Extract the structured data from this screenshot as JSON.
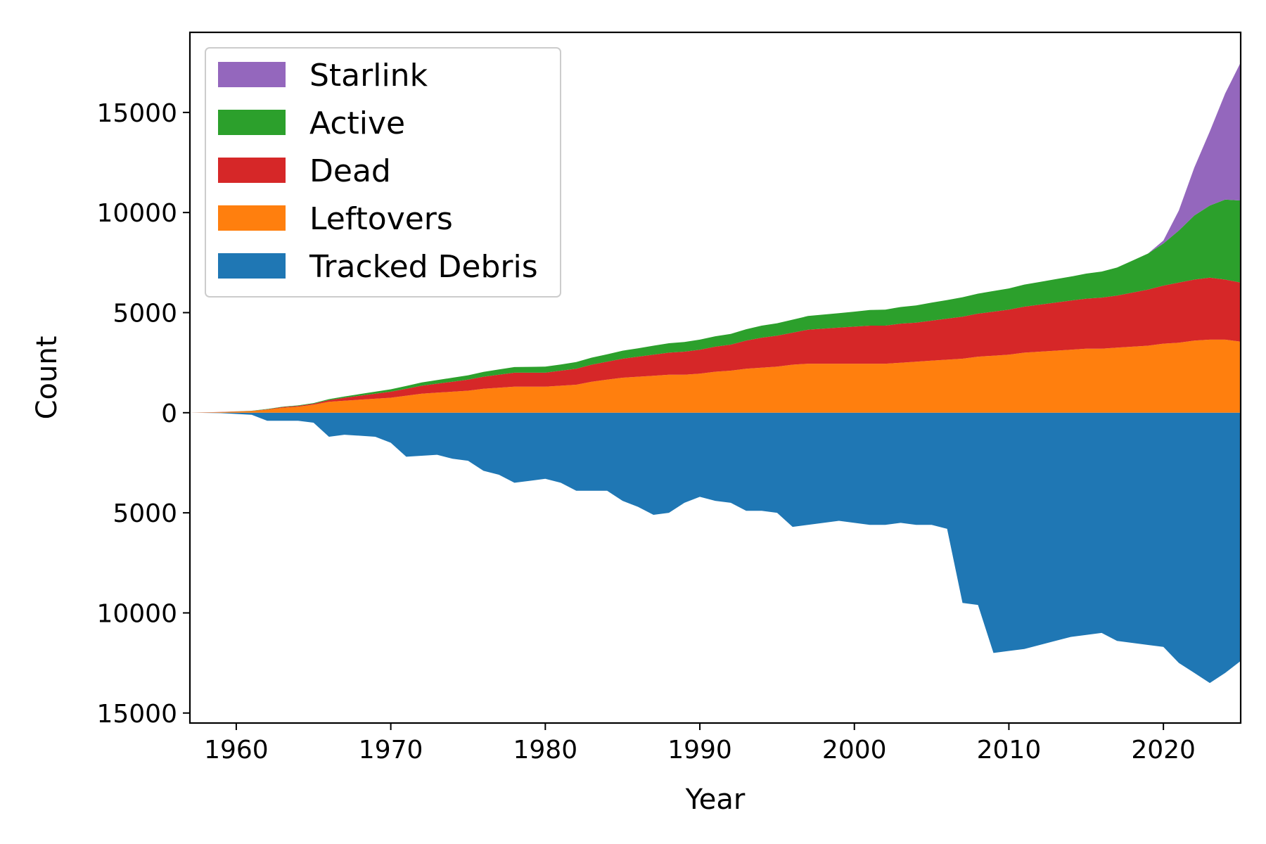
{
  "chart_data": {
    "type": "area",
    "title": "",
    "xlabel": "Year",
    "ylabel": "Count",
    "xlim": [
      1957,
      2025
    ],
    "ylim": [
      -15500,
      19000
    ],
    "xticks": [
      1960,
      1970,
      1980,
      1990,
      2000,
      2010,
      2020
    ],
    "xtick_labels": [
      "1960",
      "1970",
      "1980",
      "1990",
      "2000",
      "2010",
      "2020"
    ],
    "yticks": [
      -15000,
      -10000,
      -5000,
      0,
      5000,
      10000,
      15000
    ],
    "ytick_labels": [
      "15000",
      "10000",
      "5000",
      "0",
      "5000",
      "10000",
      "15000"
    ],
    "grid": false,
    "legend_position": "top-left",
    "legend_order": [
      "Starlink",
      "Active",
      "Dead",
      "Leftovers",
      "Tracked Debris"
    ],
    "x": [
      1957,
      1959,
      1961,
      1962,
      1963,
      1964,
      1965,
      1966,
      1967,
      1968,
      1969,
      1970,
      1971,
      1972,
      1973,
      1974,
      1975,
      1976,
      1977,
      1978,
      1979,
      1980,
      1981,
      1982,
      1983,
      1984,
      1985,
      1986,
      1987,
      1988,
      1989,
      1990,
      1991,
      1992,
      1993,
      1994,
      1995,
      1996,
      1997,
      1998,
      1999,
      2000,
      2001,
      2002,
      2003,
      2004,
      2005,
      2006,
      2007,
      2008,
      2009,
      2010,
      2011,
      2012,
      2013,
      2014,
      2015,
      2016,
      2017,
      2018,
      2019,
      2020,
      2021,
      2022,
      2023,
      2024,
      2025
    ],
    "series": [
      {
        "name": "Tracked Debris",
        "color": "#1f77b4",
        "direction": "below",
        "values": [
          0,
          20,
          100,
          400,
          400,
          400,
          500,
          1200,
          1100,
          1150,
          1200,
          1500,
          2200,
          2150,
          2100,
          2300,
          2400,
          2900,
          3100,
          3500,
          3400,
          3300,
          3500,
          3900,
          3900,
          3900,
          4400,
          4700,
          5100,
          5000,
          4500,
          4200,
          4400,
          4500,
          4900,
          4900,
          5000,
          5700,
          5600,
          5500,
          5400,
          5500,
          5600,
          5600,
          5500,
          5600,
          5600,
          5800,
          9500,
          9600,
          12000,
          11900,
          11800,
          11600,
          11400,
          11200,
          11100,
          11000,
          11400,
          11500,
          11600,
          11700,
          12500,
          13000,
          13500,
          13000,
          12400
        ]
      },
      {
        "name": "Leftovers",
        "color": "#ff7f0e",
        "values": [
          0,
          30,
          80,
          150,
          250,
          300,
          400,
          550,
          600,
          650,
          700,
          750,
          850,
          950,
          1000,
          1050,
          1100,
          1200,
          1250,
          1300,
          1300,
          1300,
          1350,
          1400,
          1550,
          1650,
          1750,
          1800,
          1850,
          1900,
          1900,
          1950,
          2050,
          2100,
          2200,
          2250,
          2300,
          2400,
          2450,
          2450,
          2450,
          2450,
          2450,
          2450,
          2500,
          2550,
          2600,
          2650,
          2700,
          2800,
          2850,
          2900,
          3000,
          3050,
          3100,
          3150,
          3200,
          3200,
          3250,
          3300,
          3350,
          3450,
          3500,
          3600,
          3650,
          3650,
          3550
        ]
      },
      {
        "name": "Dead",
        "color": "#d62728",
        "values": [
          0,
          5,
          10,
          20,
          30,
          40,
          50,
          80,
          150,
          200,
          250,
          300,
          350,
          400,
          450,
          500,
          550,
          600,
          650,
          700,
          700,
          700,
          750,
          800,
          850,
          900,
          950,
          1000,
          1050,
          1100,
          1150,
          1200,
          1250,
          1300,
          1400,
          1500,
          1550,
          1600,
          1700,
          1750,
          1800,
          1850,
          1900,
          1900,
          1950,
          1950,
          2000,
          2050,
          2100,
          2150,
          2200,
          2250,
          2300,
          2350,
          2400,
          2450,
          2500,
          2550,
          2600,
          2700,
          2800,
          2900,
          3000,
          3050,
          3100,
          3000,
          2950
        ]
      },
      {
        "name": "Active",
        "color": "#2ca02c",
        "values": [
          0,
          3,
          10,
          15,
          20,
          25,
          30,
          50,
          60,
          80,
          100,
          120,
          140,
          160,
          180,
          200,
          220,
          240,
          260,
          280,
          290,
          300,
          310,
          330,
          350,
          370,
          400,
          420,
          450,
          470,
          480,
          500,
          520,
          540,
          570,
          600,
          620,
          650,
          680,
          700,
          720,
          750,
          780,
          800,
          830,
          860,
          900,
          930,
          970,
          1000,
          1030,
          1060,
          1100,
          1130,
          1170,
          1200,
          1250,
          1300,
          1400,
          1600,
          1800,
          2100,
          2600,
          3200,
          3600,
          4000,
          4100
        ]
      },
      {
        "name": "Starlink",
        "color": "#9467bd",
        "values": [
          0,
          0,
          0,
          0,
          0,
          0,
          0,
          0,
          0,
          0,
          0,
          0,
          0,
          0,
          0,
          0,
          0,
          0,
          0,
          0,
          0,
          0,
          0,
          0,
          0,
          0,
          0,
          0,
          0,
          0,
          0,
          0,
          0,
          0,
          0,
          0,
          0,
          0,
          0,
          0,
          0,
          0,
          0,
          0,
          0,
          0,
          0,
          0,
          0,
          0,
          0,
          0,
          0,
          0,
          0,
          0,
          0,
          0,
          0,
          0,
          0,
          150,
          1000,
          2400,
          3700,
          5300,
          6900
        ]
      }
    ]
  }
}
